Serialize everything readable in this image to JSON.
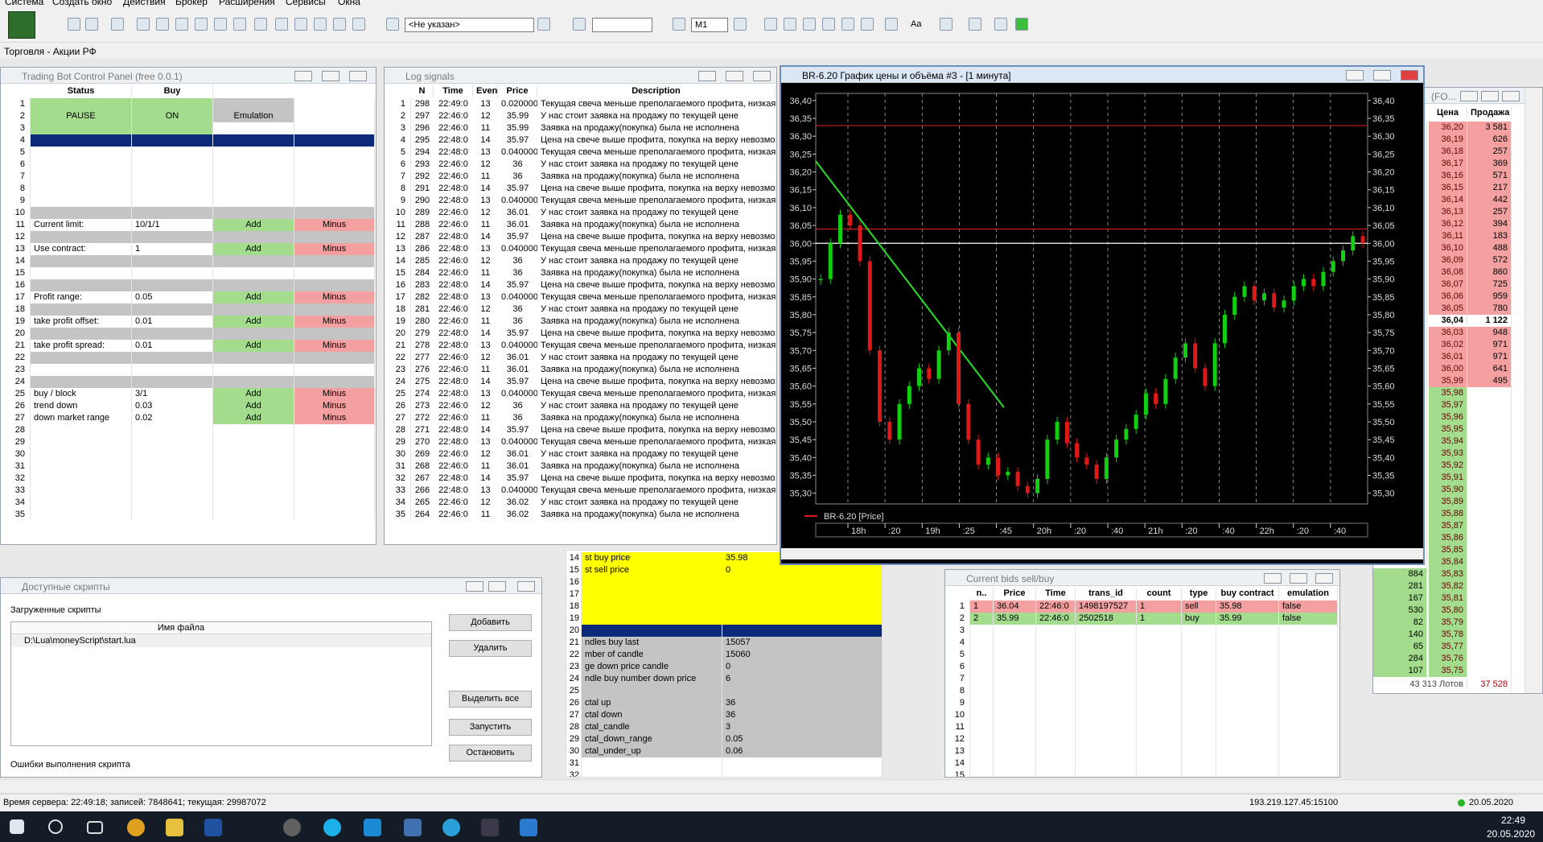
{
  "menu": [
    "Система",
    "Создать окно",
    "Действия",
    "Брокер",
    "Расширения",
    "Сервисы",
    "Окна"
  ],
  "toolbar": {
    "account": "<Не указан>",
    "interval": "M1",
    "font": "Aa"
  },
  "tab": "Торговля - Акции РФ",
  "bot_panel": {
    "title": "Trading Bot Control Panel (free 0.0.1)",
    "headers": [
      "Status",
      "Buy"
    ],
    "row_numbers": [
      1,
      2,
      3,
      4,
      5,
      6,
      7,
      8,
      9,
      10,
      11,
      12,
      13,
      14,
      15,
      16,
      17,
      18,
      19,
      20,
      21,
      22,
      23,
      24,
      25,
      26,
      27,
      28,
      29,
      30,
      31,
      32,
      33,
      34,
      35
    ],
    "controls": [
      "PAUSE",
      "ON",
      "Emulation"
    ],
    "entries": [
      {
        "row": 11,
        "label": "Current limit:",
        "value": "10/1/1",
        "add": "Add",
        "minus": "Minus"
      },
      {
        "row": 13,
        "label": "Use contract:",
        "value": "1",
        "add": "Add",
        "minus": "Minus"
      },
      {
        "row": 17,
        "label": "Profit range:",
        "value": "0.05",
        "add": "Add",
        "minus": "Minus"
      },
      {
        "row": 19,
        "label": "take profit offset:",
        "value": "0.01",
        "add": "Add",
        "minus": "Minus"
      },
      {
        "row": 21,
        "label": "take profit spread:",
        "value": "0.01",
        "add": "Add",
        "minus": "Minus"
      },
      {
        "row": 25,
        "label": "buy / block",
        "value": "3/1",
        "add": "Add",
        "minus": "Minus"
      },
      {
        "row": 26,
        "label": "trend down",
        "value": "0.03",
        "add": "Add",
        "minus": "Minus"
      },
      {
        "row": 27,
        "label": "down market range",
        "value": "0.02",
        "add": "Add",
        "minus": "Minus"
      }
    ]
  },
  "log_signals": {
    "title": "Log signals",
    "headers": [
      "N",
      "Time",
      "Even",
      "Price",
      "Description"
    ],
    "row_numbers": [
      1,
      2,
      3,
      4,
      5,
      6,
      7,
      8,
      9,
      10,
      11,
      12,
      13,
      14,
      15,
      16,
      17,
      18,
      19,
      20,
      21,
      22,
      23,
      24,
      25,
      26,
      27,
      28,
      29,
      30,
      31,
      32,
      33,
      34,
      35
    ],
    "rows": [
      [
        "298",
        "22:49:0",
        "13",
        "0.0200000",
        "Текущая свеча меньше преполагаемого профита, низкая в"
      ],
      [
        "297",
        "22:46:0",
        "12",
        "35.99",
        "У нас стоит заявка на продажу по текущей цене"
      ],
      [
        "296",
        "22:46:0",
        "11",
        "35.99",
        "Заявка на продажу(покупка) была не исполнена"
      ],
      [
        "295",
        "22:48:0",
        "14",
        "35.97",
        "Цена на свече выше профита, покупка на верху невозмож"
      ],
      [
        "294",
        "22:48:0",
        "13",
        "0.0400000",
        "Текущая свеча меньше преполагаемого профита, низкая в"
      ],
      [
        "293",
        "22:46:0",
        "12",
        "36",
        "У нас стоит заявка на продажу по текущей цене"
      ],
      [
        "292",
        "22:46:0",
        "11",
        "36",
        "Заявка на продажу(покупка) была не исполнена"
      ],
      [
        "291",
        "22:48:0",
        "14",
        "35.97",
        "Цена на свече выше профита, покупка на верху невозмож"
      ],
      [
        "290",
        "22:48:0",
        "13",
        "0.0400000",
        "Текущая свеча меньше преполагаемого профита, низкая в"
      ],
      [
        "289",
        "22:46:0",
        "12",
        "36.01",
        "У нас стоит заявка на продажу по текущей цене"
      ],
      [
        "288",
        "22:46:0",
        "11",
        "36.01",
        "Заявка на продажу(покупка) была не исполнена"
      ],
      [
        "287",
        "22:48:0",
        "14",
        "35.97",
        "Цена на свече выше профита, покупка на верху невозмож"
      ],
      [
        "286",
        "22:48:0",
        "13",
        "0.0400000",
        "Текущая свеча меньше преполагаемого профита, низкая в"
      ],
      [
        "285",
        "22:46:0",
        "12",
        "36",
        "У нас стоит заявка на продажу по текущей цене"
      ],
      [
        "284",
        "22:46:0",
        "11",
        "36",
        "Заявка на продажу(покупка) была не исполнена"
      ],
      [
        "283",
        "22:48:0",
        "14",
        "35.97",
        "Цена на свече выше профита, покупка на верху невозмож"
      ],
      [
        "282",
        "22:48:0",
        "13",
        "0.0400000",
        "Текущая свеча меньше преполагаемого профита, низкая в"
      ],
      [
        "281",
        "22:46:0",
        "12",
        "36",
        "У нас стоит заявка на продажу по текущей цене"
      ],
      [
        "280",
        "22:46:0",
        "11",
        "36",
        "Заявка на продажу(покупка) была не исполнена"
      ],
      [
        "279",
        "22:48:0",
        "14",
        "35.97",
        "Цена на свече выше профита, покупка на верху невозмож"
      ],
      [
        "278",
        "22:48:0",
        "13",
        "0.0400000",
        "Текущая свеча меньше преполагаемого профита, низкая в"
      ],
      [
        "277",
        "22:46:0",
        "12",
        "36.01",
        "У нас стоит заявка на продажу по текущей цене"
      ],
      [
        "276",
        "22:46:0",
        "11",
        "36.01",
        "Заявка на продажу(покупка) была не исполнена"
      ],
      [
        "275",
        "22:48:0",
        "14",
        "35.97",
        "Цена на свече выше профита, покупка на верху невозмож"
      ],
      [
        "274",
        "22:48:0",
        "13",
        "0.0400000",
        "Текущая свеча меньше преполагаемого профита, низкая в"
      ],
      [
        "273",
        "22:46:0",
        "12",
        "36",
        "У нас стоит заявка на продажу по текущей цене"
      ],
      [
        "272",
        "22:46:0",
        "11",
        "36",
        "Заявка на продажу(покупка) была не исполнена"
      ],
      [
        "271",
        "22:48:0",
        "14",
        "35.97",
        "Цена на свече выше профита, покупка на верху невозмож"
      ],
      [
        "270",
        "22:48:0",
        "13",
        "0.0400000",
        "Текущая свеча меньше преполагаемого профита, низкая в"
      ],
      [
        "269",
        "22:46:0",
        "12",
        "36.01",
        "У нас стоит заявка на продажу по текущей цене"
      ],
      [
        "268",
        "22:46:0",
        "11",
        "36.01",
        "Заявка на продажу(покупка) была не исполнена"
      ],
      [
        "267",
        "22:48:0",
        "14",
        "35.97",
        "Цена на свече выше профита, покупка на верху невозмож"
      ],
      [
        "266",
        "22:48:0",
        "13",
        "0.0400000",
        "Текущая свеча меньше преполагаемого профита, низкая в"
      ],
      [
        "265",
        "22:46:0",
        "12",
        "36.02",
        "У нас стоит заявка на продажу по текущей цене"
      ],
      [
        "264",
        "22:46:0",
        "11",
        "36.02",
        "Заявка на продажу(покупка) была не исполнена"
      ]
    ]
  },
  "chart_data": {
    "type": "candlestick",
    "title": "BR-6.20 График цены и объёма #3 - [1 минута]",
    "legend": "BR-6.20 [Price]",
    "closes": [
      35.9,
      36.0,
      36.08,
      36.05,
      35.95,
      35.7,
      35.5,
      35.45,
      35.55,
      35.6,
      35.65,
      35.62,
      35.7,
      35.75,
      35.55,
      35.45,
      35.38,
      35.4,
      35.35,
      35.36,
      35.32,
      35.3,
      35.34,
      35.45,
      35.5,
      35.44,
      35.4,
      35.38,
      35.34,
      35.4,
      35.45,
      35.48,
      35.52,
      35.58,
      35.55,
      35.62,
      35.68,
      35.72,
      35.65,
      35.6,
      35.72,
      35.8,
      35.85,
      35.88,
      35.84,
      35.86,
      35.82,
      35.84,
      35.88,
      35.9,
      35.88,
      35.92,
      35.95,
      35.98,
      36.02,
      36.0
    ],
    "up_color": "#10d010",
    "down_color": "#e01818",
    "levels": [
      {
        "value": 36.33,
        "color": "#c81e1e"
      },
      {
        "value": 36.04,
        "color": "#c81e1e"
      },
      {
        "value": 36.0,
        "color": "#ffffff"
      }
    ],
    "trend_line": {
      "values": [
        36.23,
        35.54
      ],
      "color": "#22e022"
    },
    "ylim": [
      35.27,
      36.42
    ],
    "yticks": [
      {
        "value": 36.4,
        "label": "36,40"
      },
      {
        "value": 36.35,
        "label": "36,35"
      },
      {
        "value": 36.3,
        "label": "36,30"
      },
      {
        "value": 36.25,
        "label": "36,25"
      },
      {
        "value": 36.2,
        "label": "36,20"
      },
      {
        "value": 36.15,
        "label": "36,15"
      },
      {
        "value": 36.1,
        "label": "36,10"
      },
      {
        "value": 36.05,
        "label": "36,05"
      },
      {
        "value": 36,
        "label": "36,00"
      },
      {
        "value": 35.95,
        "label": "35,95"
      },
      {
        "value": 35.9,
        "label": "35,90"
      },
      {
        "value": 35.85,
        "label": "35,85"
      },
      {
        "value": 35.8,
        "label": "35,80"
      },
      {
        "value": 35.75,
        "label": "35,75"
      },
      {
        "value": 35.7,
        "label": "35,70"
      },
      {
        "value": 35.65,
        "label": "35,65"
      },
      {
        "value": 35.6,
        "label": "35,60"
      },
      {
        "value": 35.55,
        "label": "35,55"
      },
      {
        "value": 35.5,
        "label": "35,50"
      },
      {
        "value": 35.45,
        "label": "35,45"
      },
      {
        "value": 35.4,
        "label": "35,40"
      },
      {
        "value": 35.35,
        "label": "35,35"
      },
      {
        "value": 35.3,
        "label": "35,30"
      }
    ],
    "time_labels": [
      "18h",
      ":20",
      "19h",
      ":25",
      ":45",
      "20h",
      ":20",
      ":40",
      "21h",
      ":20",
      ":40",
      "22h",
      ":20",
      ":40"
    ]
  },
  "stats_table": {
    "row_numbers": [
      14,
      15,
      16,
      17,
      18,
      19,
      20,
      21,
      22,
      23,
      24,
      25,
      26,
      27,
      28,
      29,
      30,
      31,
      32
    ],
    "entries": [
      {
        "row": 14,
        "label": "st buy price",
        "value": "35.98"
      },
      {
        "row": 15,
        "label": "st sell price",
        "value": "0"
      },
      {
        "row": 21,
        "label": "ndles buy last",
        "value": "15057"
      },
      {
        "row": 22,
        "label": "mber of candle",
        "value": "15060"
      },
      {
        "row": 23,
        "label": "ge down price candle",
        "value": "0"
      },
      {
        "row": 24,
        "label": "ndle buy number down price",
        "value": "6"
      },
      {
        "row": 26,
        "label": "ctal up",
        "value": "36"
      },
      {
        "row": 27,
        "label": "ctal down",
        "value": "36"
      },
      {
        "row": 28,
        "label": "ctal_candle",
        "value": "3"
      },
      {
        "row": 29,
        "label": "ctal_down_range",
        "value": "0.05"
      },
      {
        "row": 30,
        "label": "ctal_under_up",
        "value": "0.06"
      }
    ]
  },
  "bids": {
    "title": "Current bids  sell/buy",
    "headers": [
      "n..",
      "Price",
      "Time",
      "trans_id",
      "count",
      "type",
      "buy contract",
      "emulation"
    ],
    "row_numbers": [
      1,
      2,
      3,
      4,
      5,
      6,
      7,
      8,
      9,
      10,
      11,
      12,
      13,
      14,
      15
    ],
    "rows": [
      [
        "1",
        "36.04",
        "22:46:0",
        "1498197527",
        "1",
        "sell",
        "35.98",
        "false"
      ],
      [
        "2",
        "35.99",
        "22:46:0",
        "2502518",
        "1",
        "buy",
        "35.99",
        "false"
      ]
    ]
  },
  "order_book": {
    "title": "(FO...",
    "headers": [
      "Цена",
      "Продажа"
    ],
    "rows": [
      {
        "price": "36,20",
        "sell": "3 581"
      },
      {
        "price": "36,19",
        "sell": "626"
      },
      {
        "price": "36,18",
        "sell": "257"
      },
      {
        "price": "36,17",
        "sell": "369"
      },
      {
        "price": "36,16",
        "sell": "571"
      },
      {
        "price": "36,15",
        "sell": "217"
      },
      {
        "price": "36,14",
        "sell": "442"
      },
      {
        "price": "36,13",
        "sell": "257"
      },
      {
        "price": "36,12",
        "sell": "394"
      },
      {
        "price": "36,11",
        "sell": "183"
      },
      {
        "price": "36,10",
        "sell": "488"
      },
      {
        "price": "36,09",
        "sell": "572"
      },
      {
        "price": "36,08",
        "sell": "860"
      },
      {
        "price": "36,07",
        "sell": "725"
      },
      {
        "price": "36,06",
        "sell": "959"
      },
      {
        "price": "36,05",
        "sell": "780"
      },
      {
        "price": "36,04",
        "sell": "1 122",
        "best": true
      },
      {
        "price": "36,03",
        "sell": "948"
      },
      {
        "price": "36,02",
        "sell": "971"
      },
      {
        "price": "36,01",
        "sell": "971"
      },
      {
        "price": "36,00",
        "sell": "641"
      },
      {
        "price": "35,99",
        "sell": "495"
      },
      {
        "price": "35,98"
      },
      {
        "price": "35,97"
      },
      {
        "price": "35,96"
      },
      {
        "price": "35,95"
      },
      {
        "price": "35,94"
      },
      {
        "price": "35,93"
      },
      {
        "price": "35,92"
      },
      {
        "price": "35,91"
      },
      {
        "price": "35,90"
      },
      {
        "price": "35,89"
      },
      {
        "price": "35,88"
      },
      {
        "price": "35,87"
      },
      {
        "price": "35,86"
      },
      {
        "price": "35,85"
      },
      {
        "price": "35,84"
      },
      {
        "price": "35,83",
        "buy": "884"
      },
      {
        "price": "35,82",
        "buy": "281"
      },
      {
        "price": "35,81",
        "buy": "167"
      },
      {
        "price": "35,80",
        "buy": "530"
      },
      {
        "price": "35,79",
        "buy": "82"
      },
      {
        "price": "35,78",
        "buy": "140"
      },
      {
        "price": "35,77",
        "buy": "65"
      },
      {
        "price": "35,76",
        "buy": "284"
      },
      {
        "price": "35,75",
        "buy": "107"
      }
    ],
    "total_buy": "43 313 Лотов",
    "total_sell": "37 528"
  },
  "scripts": {
    "title": "Доступные скрипты",
    "loaded": "Загруженные скрипты",
    "column": "Имя файла",
    "files": [
      "D:\\Lua\\moneyScript\\start.lua"
    ],
    "buttons": [
      "Добавить",
      "Удалить",
      "Выделить все",
      "Запустить",
      "Остановить"
    ],
    "errors": "Ошибки выполнения скрипта"
  },
  "status_bar": {
    "server": "Время сервера: 22:49:18; записей: 7848641; текущая: 29987072",
    "ip": "193.219.127.45:15100",
    "date": "20.05.2020"
  },
  "taskbar": {
    "time": "22:49",
    "date": "20.05.2020"
  }
}
